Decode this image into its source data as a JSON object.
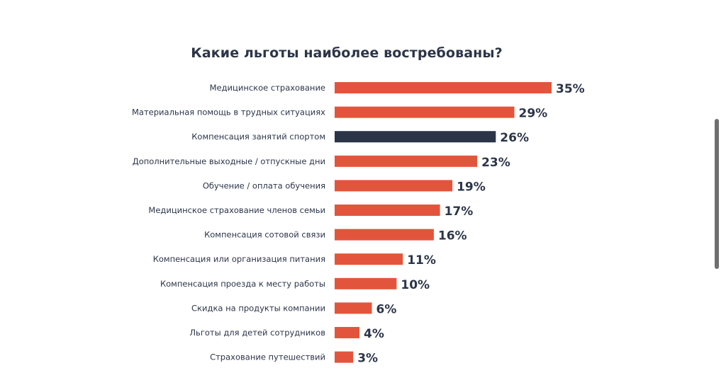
{
  "chart_data": {
    "type": "bar",
    "orientation": "horizontal",
    "title": "Какие льготы наиболее востребованы?",
    "categories": [
      "Медицинское страхование",
      "Материальная помощь в трудных ситуациях",
      "Компенсация занятий спортом",
      "Дополнительные выходные / отпускные дни",
      "Обучение / оплата обучения",
      "Медицинское страхование членов семьи",
      "Компенсация сотовой связи",
      "Компенсация или организация питания",
      "Компенсация проезда к месту работы",
      "Скидка на продукты компании",
      "Льготы для детей сотрудников",
      "Страхование путешествий"
    ],
    "values": [
      35,
      29,
      26,
      23,
      19,
      17,
      16,
      11,
      10,
      6,
      4,
      3
    ],
    "value_labels": [
      "35%",
      "29%",
      "26%",
      "23%",
      "19%",
      "17%",
      "16%",
      "11%",
      "10%",
      "6%",
      "4%",
      "3%"
    ],
    "highlight_index": 2,
    "xlabel": "",
    "ylabel": "",
    "grid": false,
    "legend": "none"
  },
  "colors": {
    "bar": "#e2553c",
    "highlight": "#2b3547",
    "text": "#2c3548"
  }
}
